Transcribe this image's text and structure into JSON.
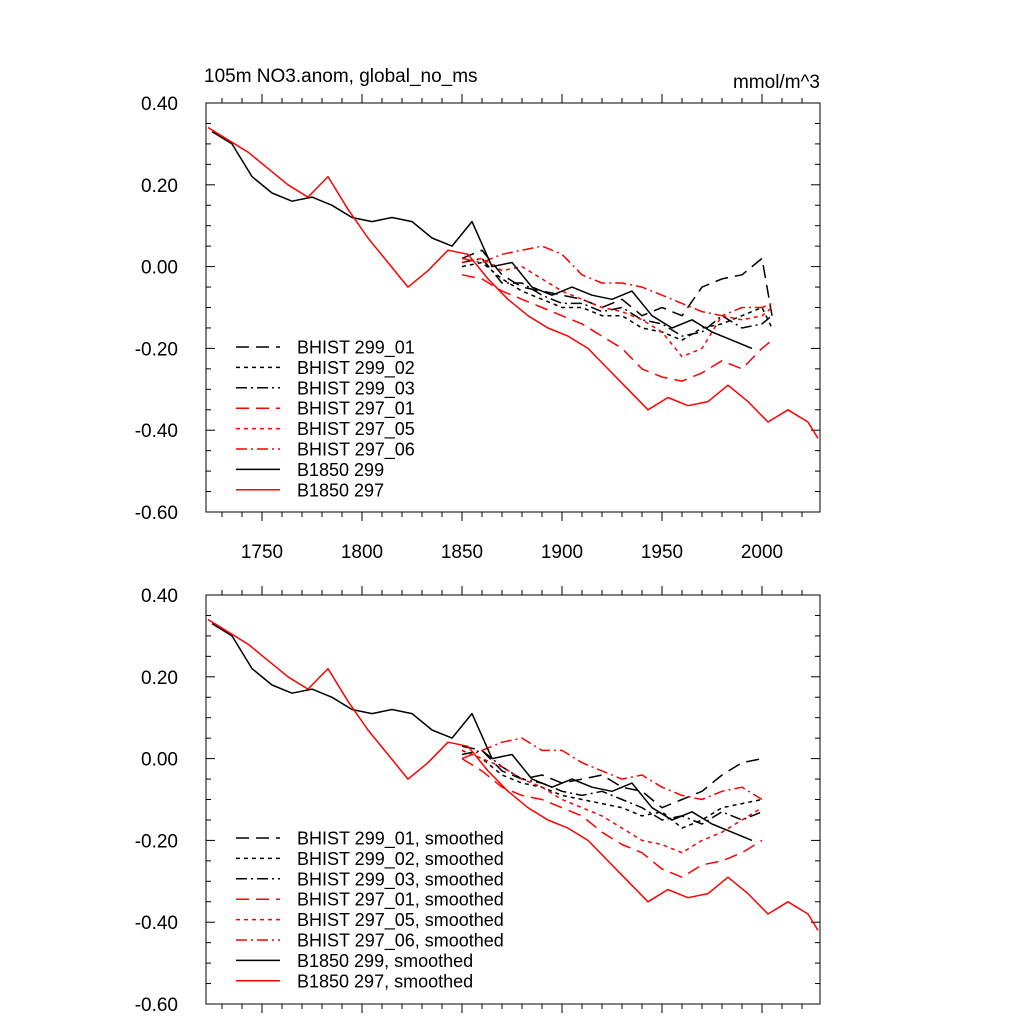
{
  "chart_data": [
    {
      "type": "line",
      "title": "105m NO3.anom, global_no_ms",
      "units": "mmol/m^3",
      "xlim": [
        1722,
        2029
      ],
      "ylim": [
        -0.6,
        0.4
      ],
      "x_ticks": [
        1750,
        1800,
        1850,
        1900,
        1950,
        2000
      ],
      "y_ticks": [
        "0.40",
        "0.20",
        "0.00",
        "-0.20",
        "-0.40",
        "-0.60"
      ],
      "legend_position": "bottom-left",
      "series": [
        {
          "name": "BHIST 299_01",
          "color": "#000000",
          "dash": "longdash",
          "x": [
            1850,
            1860,
            1870,
            1880,
            1890,
            1900,
            1910,
            1920,
            1930,
            1940,
            1950,
            1960,
            1970,
            1980,
            1990,
            2000,
            2005
          ],
          "y": [
            0.02,
            0.04,
            -0.02,
            -0.05,
            -0.06,
            -0.07,
            -0.08,
            -0.1,
            -0.08,
            -0.12,
            -0.1,
            -0.12,
            -0.05,
            -0.03,
            -0.02,
            0.02,
            -0.12
          ]
        },
        {
          "name": "BHIST 299_02",
          "color": "#000000",
          "dash": "shortdash",
          "x": [
            1850,
            1860,
            1870,
            1880,
            1890,
            1900,
            1910,
            1920,
            1930,
            1940,
            1950,
            1960,
            1970,
            1980,
            1990,
            2000,
            2005
          ],
          "y": [
            0.0,
            0.01,
            -0.03,
            -0.06,
            -0.08,
            -0.1,
            -0.1,
            -0.12,
            -0.12,
            -0.15,
            -0.16,
            -0.18,
            -0.15,
            -0.14,
            -0.12,
            -0.1,
            -0.15
          ]
        },
        {
          "name": "BHIST 299_03",
          "color": "#000000",
          "dash": "dashdot",
          "x": [
            1850,
            1860,
            1870,
            1880,
            1890,
            1900,
            1910,
            1920,
            1930,
            1940,
            1950,
            1960,
            1970,
            1980,
            1990,
            2000,
            2005
          ],
          "y": [
            0.01,
            0.02,
            -0.04,
            -0.04,
            -0.07,
            -0.09,
            -0.09,
            -0.11,
            -0.1,
            -0.13,
            -0.14,
            -0.17,
            -0.16,
            -0.12,
            -0.15,
            -0.14,
            -0.12
          ]
        },
        {
          "name": "BHIST 297_01",
          "color": "#ff0000",
          "dash": "longdash",
          "x": [
            1850,
            1860,
            1870,
            1880,
            1890,
            1900,
            1910,
            1920,
            1930,
            1940,
            1950,
            1960,
            1970,
            1980,
            1990,
            2000,
            2005
          ],
          "y": [
            -0.02,
            -0.03,
            -0.06,
            -0.08,
            -0.1,
            -0.12,
            -0.14,
            -0.17,
            -0.2,
            -0.25,
            -0.27,
            -0.28,
            -0.26,
            -0.23,
            -0.25,
            -0.2,
            -0.18
          ]
        },
        {
          "name": "BHIST 297_05",
          "color": "#ff0000",
          "dash": "shortdash",
          "x": [
            1850,
            1860,
            1870,
            1880,
            1890,
            1900,
            1910,
            1920,
            1930,
            1940,
            1950,
            1960,
            1970,
            1980,
            1990,
            2000,
            2005
          ],
          "y": [
            0.01,
            0.02,
            -0.01,
            0.0,
            -0.03,
            -0.06,
            -0.08,
            -0.1,
            -0.11,
            -0.13,
            -0.16,
            -0.22,
            -0.2,
            -0.12,
            -0.13,
            -0.12,
            -0.1
          ]
        },
        {
          "name": "BHIST 297_06",
          "color": "#ff0000",
          "dash": "dashdot",
          "x": [
            1850,
            1860,
            1870,
            1880,
            1890,
            1900,
            1910,
            1920,
            1930,
            1940,
            1950,
            1960,
            1970,
            1980,
            1990,
            2000,
            2005
          ],
          "y": [
            0.02,
            0.01,
            0.03,
            0.04,
            0.05,
            0.03,
            -0.02,
            -0.04,
            -0.04,
            -0.05,
            -0.07,
            -0.09,
            -0.11,
            -0.12,
            -0.1,
            -0.1,
            -0.09
          ]
        },
        {
          "name": "B1850 299",
          "color": "#000000",
          "dash": "solid",
          "x": [
            1725,
            1735,
            1745,
            1755,
            1765,
            1775,
            1785,
            1795,
            1805,
            1815,
            1825,
            1835,
            1845,
            1855,
            1865,
            1875,
            1885,
            1895,
            1905,
            1915,
            1925,
            1935,
            1945,
            1955,
            1965,
            1975,
            1985,
            1995
          ],
          "y": [
            0.33,
            0.3,
            0.22,
            0.18,
            0.16,
            0.17,
            0.15,
            0.12,
            0.11,
            0.12,
            0.11,
            0.07,
            0.05,
            0.11,
            0.0,
            0.01,
            -0.05,
            -0.07,
            -0.05,
            -0.07,
            -0.08,
            -0.06,
            -0.12,
            -0.15,
            -0.13,
            -0.16,
            -0.18,
            -0.2
          ]
        },
        {
          "name": "B1850 297",
          "color": "#ff0000",
          "dash": "solid",
          "x": [
            1723,
            1733,
            1743,
            1753,
            1763,
            1773,
            1783,
            1793,
            1803,
            1813,
            1823,
            1833,
            1843,
            1853,
            1863,
            1873,
            1883,
            1893,
            1903,
            1913,
            1923,
            1933,
            1943,
            1953,
            1963,
            1973,
            1983,
            1993,
            2003,
            2013,
            2023,
            2028
          ],
          "y": [
            0.34,
            0.31,
            0.28,
            0.24,
            0.2,
            0.17,
            0.22,
            0.14,
            0.07,
            0.01,
            -0.05,
            -0.01,
            0.04,
            0.03,
            -0.03,
            -0.08,
            -0.12,
            -0.15,
            -0.17,
            -0.2,
            -0.25,
            -0.3,
            -0.35,
            -0.32,
            -0.34,
            -0.33,
            -0.29,
            -0.33,
            -0.38,
            -0.35,
            -0.38,
            -0.42
          ]
        }
      ]
    },
    {
      "type": "line",
      "title": "",
      "xlim": [
        1722,
        2029
      ],
      "ylim": [
        -0.6,
        0.4
      ],
      "y_ticks": [
        "0.40",
        "0.20",
        "0.00",
        "-0.20",
        "-0.40",
        "-0.60"
      ],
      "legend_position": "bottom-left",
      "series": [
        {
          "name": "BHIST 299_01, smoothed",
          "color": "#000000",
          "dash": "longdash",
          "x": [
            1850,
            1860,
            1870,
            1880,
            1890,
            1900,
            1910,
            1920,
            1930,
            1940,
            1950,
            1960,
            1970,
            1980,
            1990,
            2000
          ],
          "y": [
            0.03,
            0.02,
            -0.03,
            -0.05,
            -0.04,
            -0.06,
            -0.05,
            -0.04,
            -0.07,
            -0.08,
            -0.12,
            -0.1,
            -0.08,
            -0.04,
            -0.01,
            0.0
          ]
        },
        {
          "name": "BHIST 299_02, smoothed",
          "color": "#000000",
          "dash": "shortdash",
          "x": [
            1850,
            1860,
            1870,
            1880,
            1890,
            1900,
            1910,
            1920,
            1930,
            1940,
            1950,
            1960,
            1970,
            1980,
            1990,
            2000
          ],
          "y": [
            0.02,
            0.0,
            -0.04,
            -0.06,
            -0.07,
            -0.09,
            -0.1,
            -0.11,
            -0.12,
            -0.14,
            -0.13,
            -0.17,
            -0.15,
            -0.12,
            -0.11,
            -0.1
          ]
        },
        {
          "name": "BHIST 299_03, smoothed",
          "color": "#000000",
          "dash": "dashdot",
          "x": [
            1850,
            1860,
            1870,
            1880,
            1890,
            1900,
            1910,
            1920,
            1930,
            1940,
            1950,
            1960,
            1970,
            1980,
            1990,
            2000
          ],
          "y": [
            0.01,
            0.02,
            -0.02,
            -0.05,
            -0.06,
            -0.08,
            -0.09,
            -0.08,
            -0.1,
            -0.12,
            -0.15,
            -0.14,
            -0.16,
            -0.13,
            -0.15,
            -0.13
          ]
        },
        {
          "name": "BHIST 297_01, smoothed",
          "color": "#ff0000",
          "dash": "longdash",
          "x": [
            1850,
            1860,
            1870,
            1880,
            1890,
            1900,
            1910,
            1920,
            1930,
            1940,
            1950,
            1960,
            1970,
            1980,
            1990,
            2000
          ],
          "y": [
            0.0,
            -0.03,
            -0.07,
            -0.09,
            -0.1,
            -0.12,
            -0.14,
            -0.18,
            -0.21,
            -0.23,
            -0.27,
            -0.29,
            -0.26,
            -0.25,
            -0.23,
            -0.2
          ]
        },
        {
          "name": "BHIST 297_05, smoothed",
          "color": "#ff0000",
          "dash": "shortdash",
          "x": [
            1850,
            1860,
            1870,
            1880,
            1890,
            1900,
            1910,
            1920,
            1930,
            1940,
            1950,
            1960,
            1970,
            1980,
            1990,
            2000
          ],
          "y": [
            0.02,
            0.0,
            -0.02,
            -0.05,
            -0.07,
            -0.1,
            -0.12,
            -0.14,
            -0.17,
            -0.2,
            -0.21,
            -0.23,
            -0.2,
            -0.18,
            -0.15,
            -0.12
          ]
        },
        {
          "name": "BHIST 297_06, smoothed",
          "color": "#ff0000",
          "dash": "dashdot",
          "x": [
            1850,
            1860,
            1870,
            1880,
            1890,
            1900,
            1910,
            1920,
            1930,
            1940,
            1950,
            1960,
            1970,
            1980,
            1990,
            2000
          ],
          "y": [
            0.0,
            0.02,
            0.04,
            0.05,
            0.02,
            0.02,
            -0.01,
            -0.03,
            -0.05,
            -0.04,
            -0.07,
            -0.09,
            -0.1,
            -0.08,
            -0.07,
            -0.1
          ]
        },
        {
          "name": "B1850 299, smoothed",
          "color": "#000000",
          "dash": "solid",
          "x": [
            1725,
            1735,
            1745,
            1755,
            1765,
            1775,
            1785,
            1795,
            1805,
            1815,
            1825,
            1835,
            1845,
            1855,
            1865,
            1875,
            1885,
            1895,
            1905,
            1915,
            1925,
            1935,
            1945,
            1955,
            1965,
            1975,
            1985,
            1995
          ],
          "y": [
            0.33,
            0.3,
            0.22,
            0.18,
            0.16,
            0.17,
            0.15,
            0.12,
            0.11,
            0.12,
            0.11,
            0.07,
            0.05,
            0.11,
            0.0,
            0.01,
            -0.05,
            -0.07,
            -0.05,
            -0.07,
            -0.08,
            -0.06,
            -0.12,
            -0.15,
            -0.13,
            -0.16,
            -0.18,
            -0.2
          ]
        },
        {
          "name": "B1850 297, smoothed",
          "color": "#ff0000",
          "dash": "solid",
          "x": [
            1723,
            1733,
            1743,
            1753,
            1763,
            1773,
            1783,
            1793,
            1803,
            1813,
            1823,
            1833,
            1843,
            1853,
            1863,
            1873,
            1883,
            1893,
            1903,
            1913,
            1923,
            1933,
            1943,
            1953,
            1963,
            1973,
            1983,
            1993,
            2003,
            2013,
            2023,
            2028
          ],
          "y": [
            0.34,
            0.31,
            0.28,
            0.24,
            0.2,
            0.17,
            0.22,
            0.14,
            0.07,
            0.01,
            -0.05,
            -0.01,
            0.04,
            0.03,
            -0.03,
            -0.08,
            -0.12,
            -0.15,
            -0.17,
            -0.2,
            -0.25,
            -0.3,
            -0.35,
            -0.32,
            -0.34,
            -0.33,
            -0.29,
            -0.33,
            -0.38,
            -0.35,
            -0.38,
            -0.42
          ]
        }
      ]
    }
  ]
}
